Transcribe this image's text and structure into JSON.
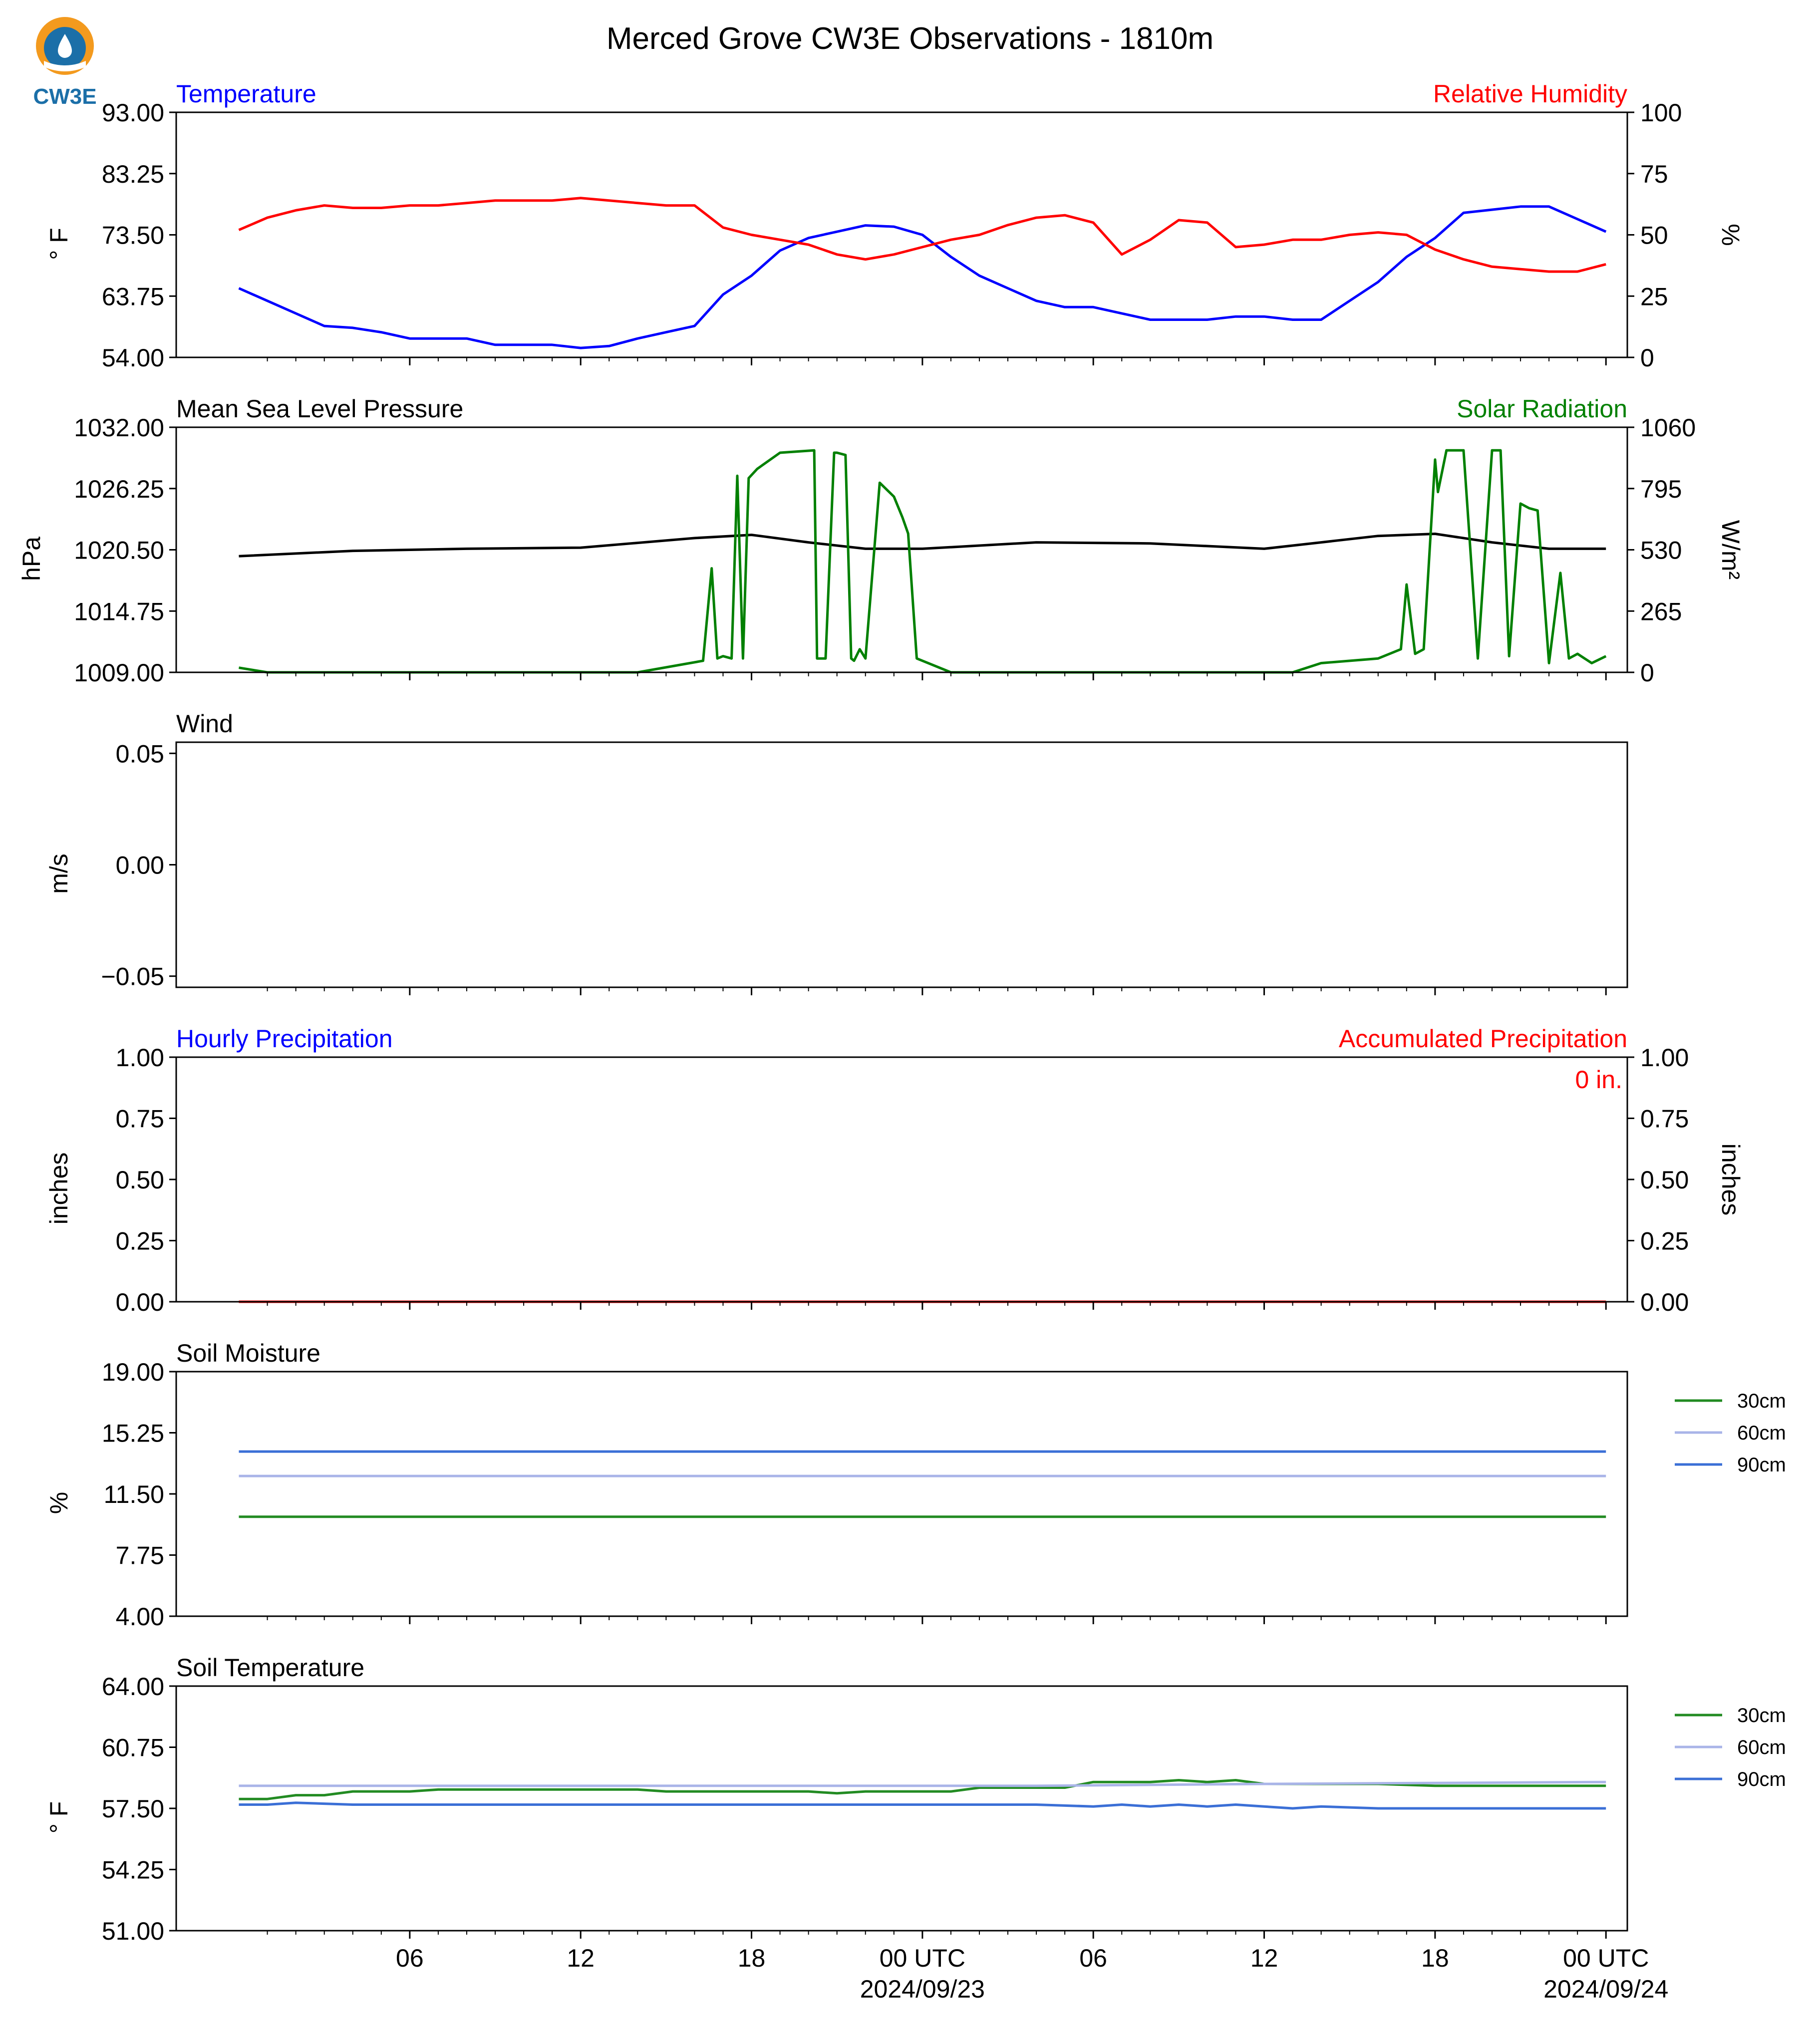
{
  "title": "Merced Grove CW3E Observations - 1810m",
  "logo": {
    "text": "CW3E",
    "colors": {
      "orange": "#f39a1e",
      "blue": "#1b6fa8"
    }
  },
  "x_axis": {
    "hours_total": 48,
    "ticks": [
      {
        "hour": 6,
        "label": "06"
      },
      {
        "hour": 12,
        "label": "12"
      },
      {
        "hour": 18,
        "label": "18"
      },
      {
        "hour": 24,
        "label": "00 UTC",
        "date": "2024/09/23"
      },
      {
        "hour": 30,
        "label": "06"
      },
      {
        "hour": 36,
        "label": "12"
      },
      {
        "hour": 42,
        "label": "18"
      },
      {
        "hour": 48,
        "label": "00 UTC",
        "date": "2024/09/24"
      }
    ]
  },
  "chart_data": [
    {
      "type": "line",
      "title_left": "Temperature",
      "title_right": "Relative Humidity",
      "title_left_color": "#0000ff",
      "title_right_color": "#ff0000",
      "ylabel": "° F",
      "ylabel_right": "%",
      "ylim": [
        54,
        93
      ],
      "yticks": [
        "54.00",
        "63.75",
        "73.50",
        "83.25",
        "93.00"
      ],
      "ylim_right": [
        0,
        100
      ],
      "yticks_right": [
        "0",
        "25",
        "50",
        "75",
        "100"
      ],
      "series": [
        {
          "axis": "left",
          "color": "#0000ff",
          "x": [
            0,
            1,
            2,
            3,
            4,
            5,
            6,
            7,
            8,
            9,
            10,
            11,
            12,
            13,
            14,
            15,
            16,
            17,
            18,
            19,
            20,
            21,
            22,
            23,
            24,
            25,
            26,
            27,
            28,
            29,
            30,
            31,
            32,
            33,
            34,
            35,
            36,
            37,
            38,
            39,
            40,
            41,
            42,
            43,
            44,
            45,
            46,
            47,
            48
          ],
          "y": [
            65,
            63,
            61,
            59,
            58.7,
            58,
            57,
            57,
            57,
            56,
            56,
            56,
            55.5,
            55.8,
            57,
            58,
            59,
            64,
            67,
            71,
            73,
            74,
            75,
            74.8,
            73.5,
            70,
            67,
            65,
            63,
            62,
            62,
            61,
            60,
            60,
            60,
            60.5,
            60.5,
            60,
            60,
            63,
            66,
            70,
            73,
            77,
            77.5,
            78,
            78,
            76,
            74
          ]
        },
        {
          "axis": "right",
          "color": "#ff0000",
          "x": [
            0,
            1,
            2,
            3,
            4,
            5,
            6,
            7,
            8,
            9,
            10,
            11,
            12,
            13,
            14,
            15,
            16,
            17,
            18,
            19,
            20,
            21,
            22,
            23,
            24,
            25,
            26,
            27,
            28,
            29,
            30,
            31,
            32,
            33,
            34,
            35,
            36,
            37,
            38,
            39,
            40,
            41,
            42,
            43,
            44,
            45,
            46,
            47,
            48
          ],
          "y": [
            52,
            57,
            60,
            62,
            61,
            61,
            62,
            62,
            63,
            64,
            64,
            64,
            65,
            64,
            63,
            62,
            62,
            53,
            50,
            48,
            46,
            42,
            40,
            42,
            45,
            48,
            50,
            54,
            57,
            58,
            55,
            42,
            48,
            56,
            55,
            45,
            46,
            48,
            48,
            50,
            51,
            50,
            44,
            40,
            37,
            36,
            35,
            35,
            38
          ]
        }
      ]
    },
    {
      "type": "line",
      "title_left": "Mean Sea Level Pressure",
      "title_right": "Solar Radiation",
      "title_left_color": "#000000",
      "title_right_color": "#008000",
      "ylabel": "hPa",
      "ylabel_right": "W/m²",
      "ylim": [
        1009,
        1032
      ],
      "yticks": [
        "1009.00",
        "1014.75",
        "1020.50",
        "1026.25",
        "1032.00"
      ],
      "ylim_right": [
        0,
        1060
      ],
      "yticks_right": [
        "0",
        "265",
        "530",
        "795",
        "1060"
      ],
      "series": [
        {
          "axis": "left",
          "color": "#000000",
          "x": [
            0,
            4,
            8,
            12,
            16,
            18,
            20,
            22,
            24,
            28,
            32,
            36,
            38,
            40,
            42,
            44,
            46,
            48
          ],
          "y": [
            1019.9,
            1020.4,
            1020.6,
            1020.7,
            1021.6,
            1021.9,
            1021.2,
            1020.6,
            1020.6,
            1021.2,
            1021.1,
            1020.6,
            1021.2,
            1021.8,
            1022.0,
            1021.2,
            1020.6,
            1020.6
          ]
        },
        {
          "axis": "right",
          "color": "#008000",
          "x": [
            0,
            1,
            7,
            14,
            16.3,
            16.6,
            16.8,
            17,
            17.3,
            17.5,
            17.7,
            17.9,
            18.2,
            19,
            20.2,
            20.3,
            20.6,
            20.9,
            21,
            21.3,
            21.5,
            21.6,
            21.8,
            22,
            22.5,
            23,
            23.3,
            23.5,
            23.8,
            24,
            25,
            26,
            27,
            28,
            36,
            37,
            38,
            40,
            40.8,
            41,
            41.3,
            41.6,
            42,
            42.1,
            42.4,
            43,
            43.5,
            44,
            44.3,
            44.6,
            45,
            45.3,
            45.6,
            46,
            46.4,
            46.7,
            47,
            47.5,
            48
          ],
          "y": [
            20,
            0,
            0,
            0,
            50,
            450,
            60,
            70,
            60,
            850,
            60,
            840,
            880,
            950,
            960,
            60,
            60,
            950,
            950,
            940,
            60,
            50,
            100,
            60,
            820,
            760,
            670,
            600,
            60,
            50,
            0,
            0,
            0,
            0,
            0,
            0,
            40,
            60,
            100,
            380,
            80,
            100,
            920,
            780,
            960,
            960,
            60,
            960,
            960,
            70,
            730,
            710,
            700,
            40,
            430,
            60,
            80,
            40,
            70
          ]
        }
      ]
    },
    {
      "type": "line",
      "title_left": "Wind",
      "ylabel": "m/s",
      "ylim": [
        -0.055,
        0.055
      ],
      "yticks": [
        "−0.05",
        "0.00",
        "0.05"
      ],
      "series": []
    },
    {
      "type": "line",
      "title_left": "Hourly Precipitation",
      "title_right": "Accumulated Precipitation",
      "title_left_color": "#0000ff",
      "title_right_color": "#ff0000",
      "ylabel": "inches",
      "ylabel_right": "inches",
      "ylim": [
        0,
        1
      ],
      "yticks": [
        "0.00",
        "0.25",
        "0.50",
        "0.75",
        "1.00"
      ],
      "ylim_right": [
        0,
        1
      ],
      "yticks_right": [
        "0.00",
        "0.25",
        "0.50",
        "0.75",
        "1.00"
      ],
      "annotation": "0 in.",
      "series": [
        {
          "axis": "right",
          "color": "#ff0000",
          "x": [
            0,
            48
          ],
          "y": [
            0,
            0
          ]
        }
      ]
    },
    {
      "type": "line",
      "title_left": "Soil Moisture",
      "ylabel": "%",
      "ylim": [
        4,
        19
      ],
      "yticks": [
        "4.00",
        "7.75",
        "11.50",
        "15.25",
        "19.00"
      ],
      "legend": "right",
      "series": [
        {
          "name": "30cm",
          "color": "#228b22",
          "x": [
            0,
            48
          ],
          "y": [
            10.1,
            10.1
          ]
        },
        {
          "name": "60cm",
          "color": "#a9b4e8",
          "x": [
            0,
            48
          ],
          "y": [
            12.6,
            12.6
          ]
        },
        {
          "name": "90cm",
          "color": "#3b6fd6",
          "x": [
            0,
            48
          ],
          "y": [
            14.1,
            14.1
          ]
        }
      ]
    },
    {
      "type": "line",
      "title_left": "Soil Temperature",
      "ylabel": "° F",
      "ylim": [
        51,
        64
      ],
      "yticks": [
        "51.00",
        "54.25",
        "57.50",
        "60.75",
        "64.00"
      ],
      "legend": "right",
      "series": [
        {
          "name": "30cm",
          "color": "#228b22",
          "x": [
            0,
            1,
            2,
            3,
            4,
            5,
            6,
            7,
            10,
            14,
            15,
            18,
            20,
            21,
            22,
            24,
            25,
            26,
            28,
            29,
            30,
            31,
            32,
            33,
            34,
            35,
            36,
            37,
            38,
            40,
            42,
            44,
            48
          ],
          "y": [
            58,
            58,
            58.2,
            58.2,
            58.4,
            58.4,
            58.4,
            58.5,
            58.5,
            58.5,
            58.4,
            58.4,
            58.4,
            58.3,
            58.4,
            58.4,
            58.4,
            58.6,
            58.6,
            58.6,
            58.9,
            58.9,
            58.9,
            59,
            58.9,
            59,
            58.8,
            58.8,
            58.8,
            58.8,
            58.7,
            58.7,
            58.7
          ]
        },
        {
          "name": "60cm",
          "color": "#a9b4e8",
          "x": [
            0,
            20,
            28,
            36,
            48
          ],
          "y": [
            58.7,
            58.7,
            58.7,
            58.8,
            58.9
          ]
        },
        {
          "name": "90cm",
          "color": "#3b6fd6",
          "x": [
            0,
            1,
            2,
            4,
            10,
            18,
            24,
            27,
            28,
            30,
            31,
            32,
            33,
            34,
            35,
            36,
            37,
            38,
            40,
            48
          ],
          "y": [
            57.7,
            57.7,
            57.8,
            57.7,
            57.7,
            57.7,
            57.7,
            57.7,
            57.7,
            57.6,
            57.7,
            57.6,
            57.7,
            57.6,
            57.7,
            57.6,
            57.5,
            57.6,
            57.5,
            57.5
          ]
        }
      ]
    }
  ]
}
